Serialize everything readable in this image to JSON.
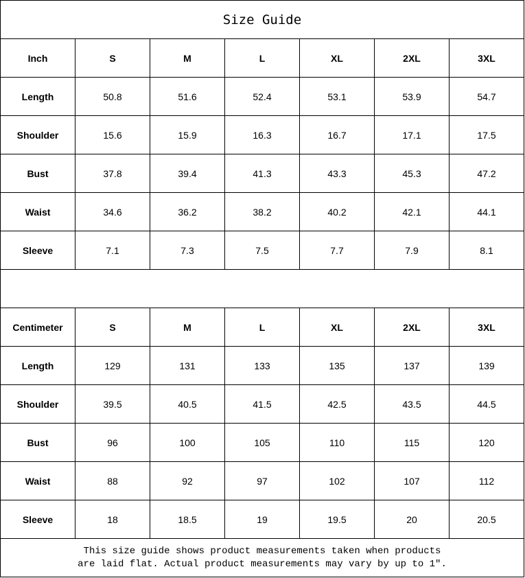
{
  "title": "Size Guide",
  "sizes": [
    "S",
    "M",
    "L",
    "XL",
    "2XL",
    "3XL"
  ],
  "inch": {
    "unit_label": "Inch",
    "rows": [
      {
        "label": "Length",
        "values": [
          "50.8",
          "51.6",
          "52.4",
          "53.1",
          "53.9",
          "54.7"
        ]
      },
      {
        "label": "Shoulder",
        "values": [
          "15.6",
          "15.9",
          "16.3",
          "16.7",
          "17.1",
          "17.5"
        ]
      },
      {
        "label": "Bust",
        "values": [
          "37.8",
          "39.4",
          "41.3",
          "43.3",
          "45.3",
          "47.2"
        ]
      },
      {
        "label": "Waist",
        "values": [
          "34.6",
          "36.2",
          "38.2",
          "40.2",
          "42.1",
          "44.1"
        ]
      },
      {
        "label": "Sleeve",
        "values": [
          "7.1",
          "7.3",
          "7.5",
          "7.7",
          "7.9",
          "8.1"
        ]
      }
    ]
  },
  "cm": {
    "unit_label": "Centimeter",
    "rows": [
      {
        "label": "Length",
        "values": [
          "129",
          "131",
          "133",
          "135",
          "137",
          "139"
        ]
      },
      {
        "label": "Shoulder",
        "values": [
          "39.5",
          "40.5",
          "41.5",
          "42.5",
          "43.5",
          "44.5"
        ]
      },
      {
        "label": "Bust",
        "values": [
          "96",
          "100",
          "105",
          "110",
          "115",
          "120"
        ]
      },
      {
        "label": "Waist",
        "values": [
          "88",
          "92",
          "97",
          "102",
          "107",
          "112"
        ]
      },
      {
        "label": "Sleeve",
        "values": [
          "18",
          "18.5",
          "19",
          "19.5",
          "20",
          "20.5"
        ]
      }
    ]
  },
  "note": {
    "line1": "This size guide shows product measurements taken when products",
    "line2": "are laid flat. Actual product measurements may vary by up to 1″."
  }
}
